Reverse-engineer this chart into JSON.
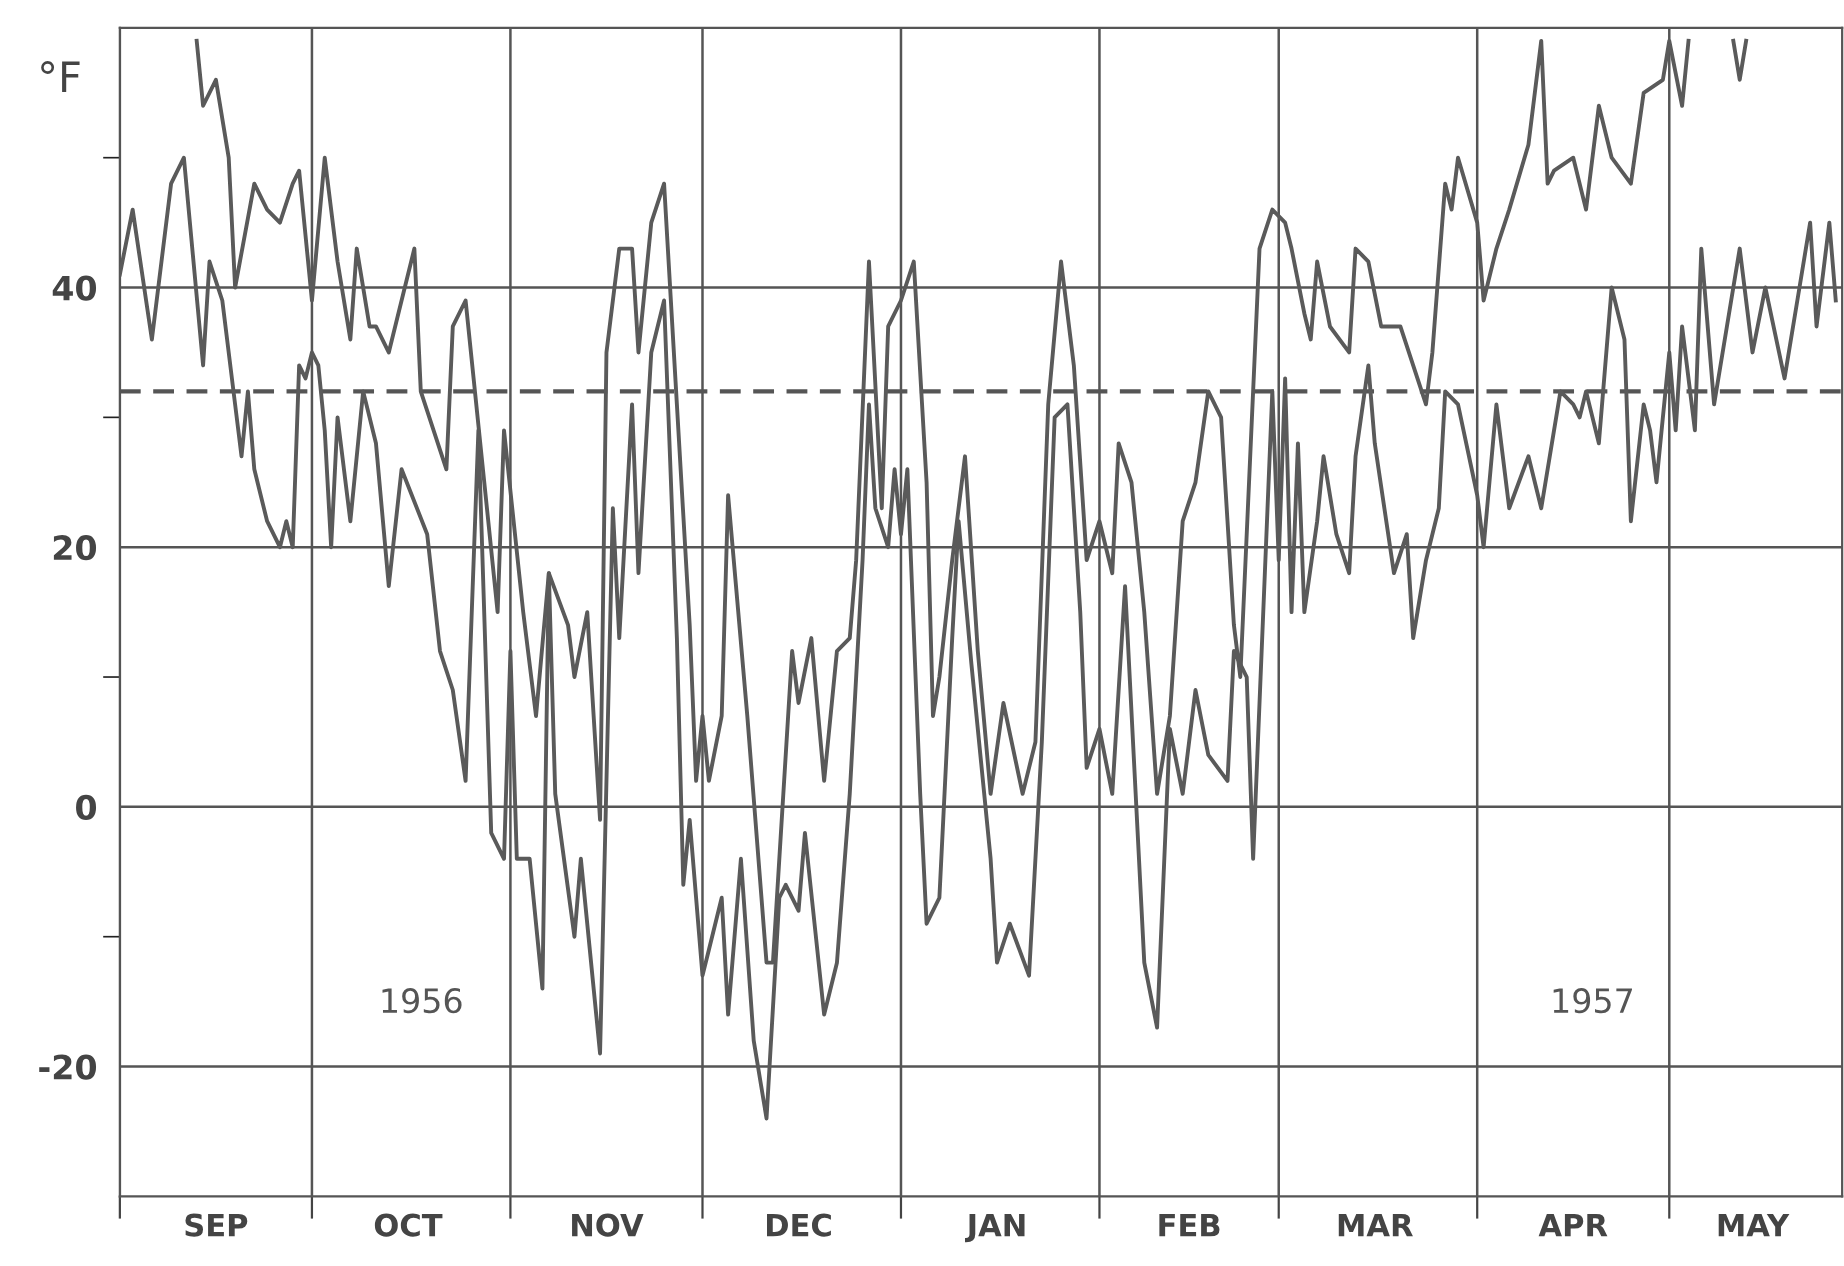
{
  "chart_data": {
    "type": "line",
    "ylabel": "°F",
    "xlim": [
      "1956-09-01",
      "1957-05-28"
    ],
    "ylim": [
      -30,
      60
    ],
    "xticks": [
      {
        "value": "1956-09-01",
        "label": null
      },
      {
        "value": "1956-09-16",
        "label": "SEP"
      },
      {
        "value": "1956-10-01",
        "label": null
      },
      {
        "value": "1956-10-16",
        "label": "OCT"
      },
      {
        "value": "1956-11-01",
        "label": null
      },
      {
        "value": "1956-11-16",
        "label": "NOV"
      },
      {
        "value": "1956-12-01",
        "label": null
      },
      {
        "value": "1956-12-16",
        "label": "DEC"
      },
      {
        "value": "1957-01-01",
        "label": null
      },
      {
        "value": "1957-01-16",
        "label": "JAN"
      },
      {
        "value": "1957-02-01",
        "label": null
      },
      {
        "value": "1957-02-15",
        "label": "FEB"
      },
      {
        "value": "1957-03-01",
        "label": null
      },
      {
        "value": "1957-03-16",
        "label": "MAR"
      },
      {
        "value": "1957-04-01",
        "label": null
      },
      {
        "value": "1957-04-16",
        "label": "APR"
      },
      {
        "value": "1957-05-01",
        "label": null
      },
      {
        "value": "1957-05-14",
        "label": "MAY"
      }
    ],
    "yticks": [
      -20,
      {
        "value": -10,
        "label": null
      },
      0,
      {
        "value": 10,
        "label": null
      },
      20,
      {
        "value": 30,
        "label": null
      },
      40,
      {
        "value": 50,
        "label": null
      }
    ],
    "grid": true,
    "line_style": "solid",
    "marker": "none",
    "ref_lines": [
      {
        "axis": "y",
        "value": 32,
        "label": null,
        "color": "#555555",
        "line_style": "dashed"
      }
    ],
    "annotations": [
      "1956",
      "1957"
    ],
    "series": [
      {
        "color": "#5a5a5a",
        "x": [
          "1956-09-01",
          "1956-09-03",
          "1956-09-06",
          "1956-09-09",
          "1956-09-11",
          "1956-09-14",
          "1956-09-15",
          "1956-09-17",
          "1956-09-19",
          "1956-09-20",
          "1956-09-21",
          "1956-09-22",
          "1956-09-24",
          "1956-09-26",
          "1956-09-27",
          "1956-09-28",
          "1956-09-29",
          "1956-09-30",
          "1956-10-01",
          "1956-10-02",
          "1956-10-03",
          "1956-10-04",
          "1956-10-05",
          "1956-10-07",
          "1956-10-09",
          "1956-10-11",
          "1956-10-13",
          "1956-10-15",
          "1956-10-19",
          "1956-10-21",
          "1956-10-23",
          "1956-10-25",
          "1956-10-27",
          "1956-10-29",
          "1956-10-31",
          "1956-11-01",
          "1956-11-02",
          "1956-11-04",
          "1956-11-06",
          "1956-11-07",
          "1956-11-08",
          "1956-11-11",
          "1956-11-12",
          "1956-11-15",
          "1956-11-17",
          "1956-11-18",
          "1956-11-20",
          "1956-11-21",
          "1956-11-23",
          "1956-11-25",
          "1956-11-27",
          "1956-11-28",
          "1956-11-29",
          "1956-12-01",
          "1956-12-02",
          "1956-12-04",
          "1956-12-05",
          "1956-12-07",
          "1956-12-09",
          "1956-12-11",
          "1956-12-13",
          "1956-12-14",
          "1956-12-16",
          "1956-12-17",
          "1956-12-20",
          "1956-12-22",
          "1956-12-24",
          "1956-12-26",
          "1956-12-27",
          "1956-12-28",
          "1956-12-30",
          "1956-12-31",
          "1957-01-01",
          "1957-01-02",
          "1957-01-04",
          "1957-01-05",
          "1957-01-07",
          "1957-01-09",
          "1957-01-10",
          "1957-01-12",
          "1957-01-15",
          "1957-01-16",
          "1957-01-18",
          "1957-01-21",
          "1957-01-23",
          "1957-01-25",
          "1957-01-27",
          "1957-01-29",
          "1957-01-30",
          "1957-02-01",
          "1957-02-03",
          "1957-02-05",
          "1957-02-08",
          "1957-02-10",
          "1957-02-12",
          "1957-02-14",
          "1957-02-16",
          "1957-02-18",
          "1957-02-21",
          "1957-02-22",
          "1957-02-24",
          "1957-02-25",
          "1957-02-28",
          "1957-03-01",
          "1957-03-02",
          "1957-03-03",
          "1957-03-04",
          "1957-03-05",
          "1957-03-07",
          "1957-03-08",
          "1957-03-10",
          "1957-03-12",
          "1957-03-13",
          "1957-03-15",
          "1957-03-16",
          "1957-03-19",
          "1957-03-21",
          "1957-03-22",
          "1957-03-24",
          "1957-03-26",
          "1957-03-27",
          "1957-03-29",
          "1957-04-01",
          "1957-04-02",
          "1957-04-04",
          "1957-04-06",
          "1957-04-09",
          "1957-04-11",
          "1957-04-14",
          "1957-04-16",
          "1957-04-17",
          "1957-04-18",
          "1957-04-20",
          "1957-04-22",
          "1957-04-24",
          "1957-04-25",
          "1957-04-27",
          "1957-04-28",
          "1957-04-29",
          "1957-05-01",
          "1957-05-02",
          "1957-05-03",
          "1957-05-05",
          "1957-05-06",
          "1957-05-08",
          "1957-05-10",
          "1957-05-12",
          "1957-05-14",
          "1957-05-16",
          "1957-05-19",
          "1957-05-21",
          "1957-05-23",
          "1957-05-24",
          "1957-05-26",
          "1957-05-27"
        ],
        "values": [
          41,
          46,
          36,
          48,
          50,
          34,
          42,
          39,
          31,
          27,
          32,
          26,
          22,
          20,
          22,
          20,
          34,
          33,
          35,
          34,
          29,
          20,
          30,
          22,
          32,
          28,
          17,
          26,
          21,
          12,
          9,
          2,
          29,
          -2,
          -4,
          12,
          -4,
          -4,
          -14,
          18,
          1,
          -10,
          -4,
          -19,
          23,
          13,
          31,
          18,
          35,
          39,
          13,
          -6,
          -1,
          -13,
          -11,
          -7,
          -16,
          -4,
          -18,
          -24,
          -7,
          -6,
          -8,
          -2,
          -16,
          -12,
          1,
          19,
          31,
          23,
          20,
          26,
          21,
          26,
          1,
          -9,
          -7,
          13,
          22,
          11,
          -4,
          -12,
          -9,
          -13,
          5,
          30,
          31,
          15,
          3,
          6,
          1,
          17,
          -12,
          -17,
          6,
          1,
          9,
          4,
          2,
          12,
          10,
          -4,
          32,
          19,
          33,
          15,
          28,
          15,
          22,
          27,
          21,
          18,
          27,
          34,
          28,
          18,
          21,
          13,
          19,
          23,
          32,
          31,
          24,
          20,
          31,
          23,
          27,
          23,
          32,
          31,
          30,
          32,
          28,
          40,
          36,
          22,
          31,
          29,
          25,
          35,
          29,
          37,
          29,
          43,
          31,
          37,
          43,
          35,
          40,
          33,
          39,
          45,
          37,
          45,
          39
        ]
      },
      {
        "color": "#5a5a5a",
        "x": [
          "1956-09-13",
          "1956-09-14",
          "1956-09-16",
          "1956-09-18",
          "1956-09-19",
          "1956-09-22",
          "1956-09-24",
          "1956-09-26",
          "1956-09-28",
          "1956-09-29",
          "1956-10-01",
          "1956-10-03",
          "1956-10-05",
          "1956-10-07",
          "1956-10-08",
          "1956-10-10",
          "1956-10-11",
          "1956-10-13",
          "1956-10-17",
          "1956-10-18",
          "1956-10-22",
          "1956-10-23",
          "1956-10-25",
          "1956-10-30",
          "1956-10-31",
          "1956-11-03",
          "1956-11-05",
          "1956-11-07",
          "1956-11-10",
          "1956-11-11",
          "1956-11-13",
          "1956-11-15",
          "1956-11-16",
          "1956-11-18",
          "1956-11-20",
          "1956-11-21",
          "1956-11-23",
          "1956-11-25",
          "1956-11-27",
          "1956-11-29",
          "1956-11-30",
          "1956-12-01",
          "1956-12-02",
          "1956-12-04",
          "1956-12-05",
          "1956-12-08",
          "1956-12-11",
          "1956-12-12",
          "1956-12-15",
          "1956-12-16",
          "1956-12-18",
          "1956-12-20",
          "1956-12-22",
          "1956-12-24",
          "1956-12-25",
          "1956-12-27",
          "1956-12-29",
          "1956-12-30",
          "1957-01-01",
          "1957-01-03",
          "1957-01-05",
          "1957-01-06",
          "1957-01-07",
          "1957-01-09",
          "1957-01-11",
          "1957-01-13",
          "1957-01-15",
          "1957-01-17",
          "1957-01-20",
          "1957-01-22",
          "1957-01-24",
          "1957-01-26",
          "1957-01-28",
          "1957-01-30",
          "1957-02-01",
          "1957-02-03",
          "1957-02-04",
          "1957-02-06",
          "1957-02-08",
          "1957-02-10",
          "1957-02-12",
          "1957-02-14",
          "1957-02-16",
          "1957-02-18",
          "1957-02-20",
          "1957-02-22",
          "1957-02-23",
          "1957-02-26",
          "1957-02-28",
          "1957-03-02",
          "1957-03-03",
          "1957-03-05",
          "1957-03-06",
          "1957-03-07",
          "1957-03-09",
          "1957-03-12",
          "1957-03-13",
          "1957-03-15",
          "1957-03-17",
          "1957-03-20",
          "1957-03-22",
          "1957-03-24",
          "1957-03-25",
          "1957-03-27",
          "1957-03-28",
          "1957-03-29",
          "1957-04-01",
          "1957-04-02",
          "1957-04-04",
          "1957-04-06",
          "1957-04-09",
          "1957-04-11",
          "1957-04-12",
          "1957-04-13",
          "1957-04-16",
          "1957-04-18",
          "1957-04-20",
          "1957-04-22",
          "1957-04-25",
          "1957-04-27",
          "1957-04-30",
          "1957-05-01",
          "1957-05-03",
          "1957-05-04",
          "1957-05-05",
          "1957-05-11",
          "1957-05-12",
          "1957-05-13"
        ],
        "values": [
          59,
          54,
          56,
          50,
          40,
          48,
          46,
          45,
          48,
          49,
          39,
          50,
          42,
          36,
          43,
          37,
          37,
          35,
          43,
          32,
          26,
          37,
          39,
          15,
          29,
          15,
          7,
          18,
          14,
          10,
          15,
          -1,
          35,
          43,
          43,
          35,
          45,
          48,
          31,
          14,
          2,
          7,
          2,
          7,
          24,
          7,
          -12,
          -12,
          12,
          8,
          13,
          2,
          12,
          13,
          19,
          42,
          23,
          37,
          39,
          42,
          25,
          7,
          10,
          19,
          27,
          12,
          1,
          8,
          1,
          5,
          31,
          42,
          34,
          19,
          22,
          18,
          28,
          25,
          15,
          1,
          7,
          22,
          25,
          32,
          30,
          14,
          10,
          43,
          46,
          45,
          43,
          38,
          36,
          42,
          37,
          35,
          43,
          42,
          37,
          37,
          34,
          31,
          35,
          48,
          46,
          50,
          45,
          39,
          43,
          46,
          51,
          59,
          48,
          49,
          50,
          46,
          54,
          50,
          48,
          55,
          56,
          59,
          54,
          59,
          null,
          59,
          56,
          59
        ]
      }
    ]
  }
}
